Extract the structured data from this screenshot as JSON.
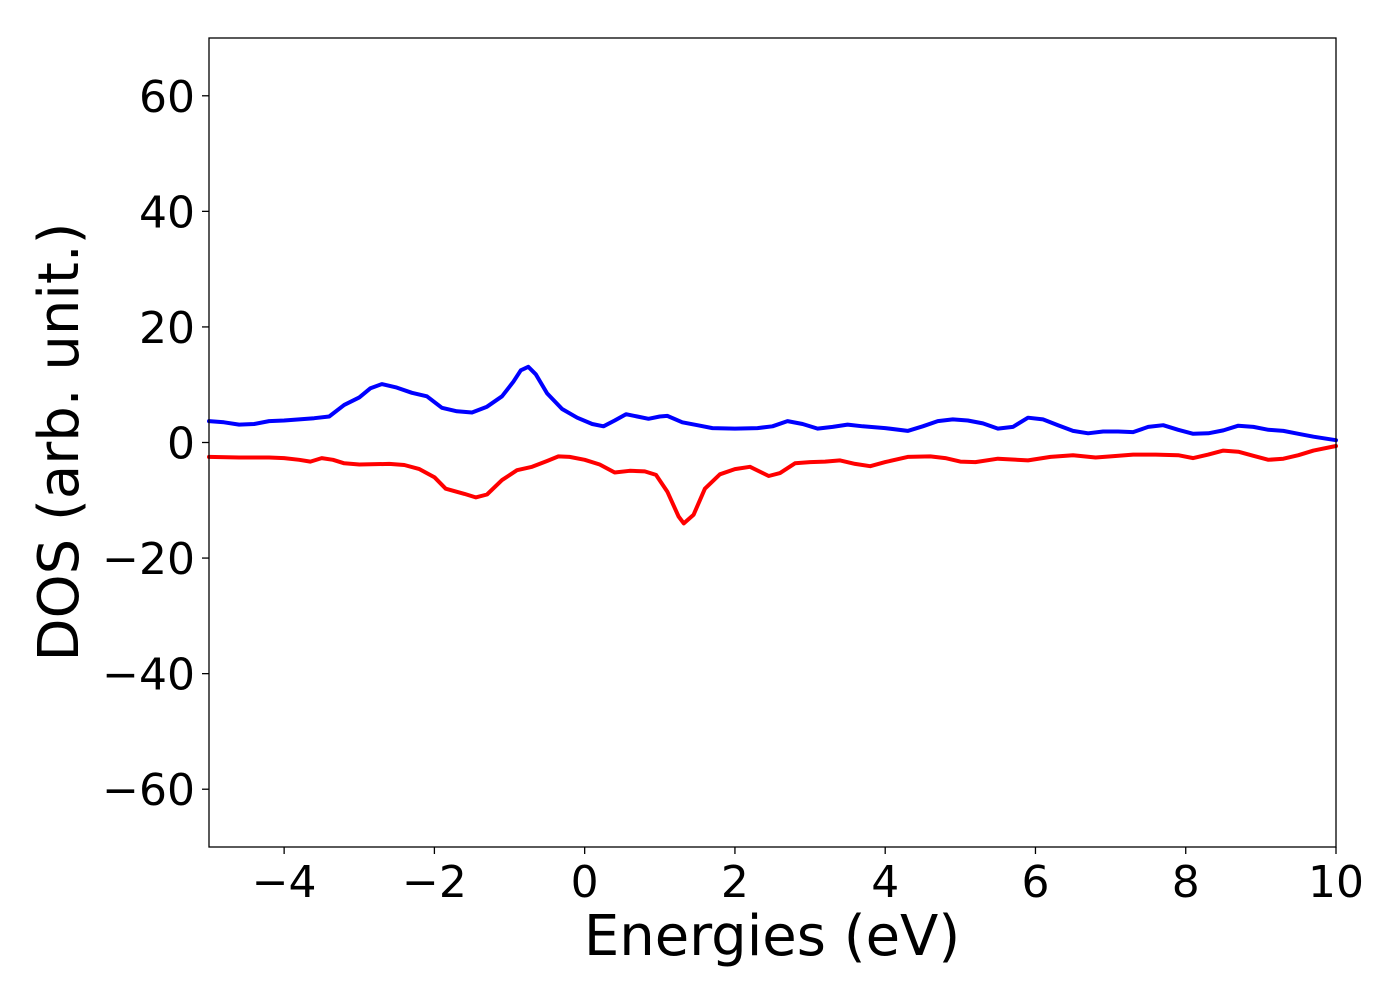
{
  "chart_data": {
    "type": "line",
    "title": "",
    "xlabel": "Energies (eV)",
    "ylabel": "DOS (arb. unit.)",
    "xlim": [
      -5,
      10
    ],
    "ylim": [
      -70,
      70
    ],
    "xticks": [
      -4,
      -2,
      0,
      2,
      4,
      6,
      8,
      10
    ],
    "xtick_labels": [
      "−4",
      "−2",
      "0",
      "2",
      "4",
      "6",
      "8",
      "10"
    ],
    "yticks": [
      60,
      40,
      20,
      0,
      -20,
      -40,
      -60
    ],
    "ytick_labels": [
      "60",
      "40",
      "20",
      "0",
      "−20",
      "−40",
      "−60"
    ],
    "grid": false,
    "series": [
      {
        "color": "#0000ff",
        "points": [
          [
            -5.0,
            3.7
          ],
          [
            -4.8,
            3.5
          ],
          [
            -4.6,
            3.1
          ],
          [
            -4.4,
            3.2
          ],
          [
            -4.2,
            3.7
          ],
          [
            -4.0,
            3.8
          ],
          [
            -3.8,
            4.0
          ],
          [
            -3.6,
            4.2
          ],
          [
            -3.4,
            4.5
          ],
          [
            -3.2,
            6.5
          ],
          [
            -3.0,
            7.8
          ],
          [
            -2.85,
            9.4
          ],
          [
            -2.7,
            10.1
          ],
          [
            -2.5,
            9.5
          ],
          [
            -2.3,
            8.6
          ],
          [
            -2.1,
            8.0
          ],
          [
            -1.9,
            6.0
          ],
          [
            -1.7,
            5.4
          ],
          [
            -1.5,
            5.2
          ],
          [
            -1.3,
            6.2
          ],
          [
            -1.1,
            8.0
          ],
          [
            -0.95,
            10.5
          ],
          [
            -0.85,
            12.5
          ],
          [
            -0.75,
            13.1
          ],
          [
            -0.65,
            11.8
          ],
          [
            -0.5,
            8.5
          ],
          [
            -0.3,
            5.8
          ],
          [
            -0.1,
            4.3
          ],
          [
            0.1,
            3.2
          ],
          [
            0.25,
            2.8
          ],
          [
            0.4,
            3.8
          ],
          [
            0.55,
            4.9
          ],
          [
            0.7,
            4.5
          ],
          [
            0.85,
            4.1
          ],
          [
            1.0,
            4.5
          ],
          [
            1.1,
            4.6
          ],
          [
            1.3,
            3.5
          ],
          [
            1.5,
            3.0
          ],
          [
            1.7,
            2.5
          ],
          [
            2.0,
            2.4
          ],
          [
            2.3,
            2.5
          ],
          [
            2.5,
            2.8
          ],
          [
            2.7,
            3.7
          ],
          [
            2.9,
            3.2
          ],
          [
            3.1,
            2.4
          ],
          [
            3.3,
            2.7
          ],
          [
            3.5,
            3.1
          ],
          [
            3.7,
            2.8
          ],
          [
            4.0,
            2.5
          ],
          [
            4.3,
            2.0
          ],
          [
            4.5,
            2.8
          ],
          [
            4.7,
            3.7
          ],
          [
            4.9,
            4.0
          ],
          [
            5.1,
            3.8
          ],
          [
            5.3,
            3.3
          ],
          [
            5.5,
            2.4
          ],
          [
            5.7,
            2.7
          ],
          [
            5.9,
            4.3
          ],
          [
            6.1,
            4.0
          ],
          [
            6.3,
            3.0
          ],
          [
            6.5,
            2.0
          ],
          [
            6.7,
            1.6
          ],
          [
            6.9,
            1.9
          ],
          [
            7.1,
            1.9
          ],
          [
            7.3,
            1.8
          ],
          [
            7.5,
            2.7
          ],
          [
            7.7,
            3.0
          ],
          [
            7.9,
            2.2
          ],
          [
            8.1,
            1.5
          ],
          [
            8.3,
            1.6
          ],
          [
            8.5,
            2.1
          ],
          [
            8.7,
            2.9
          ],
          [
            8.9,
            2.7
          ],
          [
            9.1,
            2.2
          ],
          [
            9.3,
            2.0
          ],
          [
            9.5,
            1.5
          ],
          [
            9.7,
            1.0
          ],
          [
            10.0,
            0.4
          ]
        ]
      },
      {
        "color": "#ff0000",
        "points": [
          [
            -5.0,
            -2.5
          ],
          [
            -4.6,
            -2.6
          ],
          [
            -4.2,
            -2.6
          ],
          [
            -4.0,
            -2.7
          ],
          [
            -3.8,
            -3.0
          ],
          [
            -3.65,
            -3.3
          ],
          [
            -3.5,
            -2.7
          ],
          [
            -3.35,
            -3.0
          ],
          [
            -3.2,
            -3.6
          ],
          [
            -3.0,
            -3.8
          ],
          [
            -2.6,
            -3.7
          ],
          [
            -2.4,
            -3.9
          ],
          [
            -2.2,
            -4.6
          ],
          [
            -2.0,
            -6.0
          ],
          [
            -1.85,
            -8.0
          ],
          [
            -1.6,
            -8.9
          ],
          [
            -1.45,
            -9.5
          ],
          [
            -1.3,
            -9.0
          ],
          [
            -1.1,
            -6.5
          ],
          [
            -0.9,
            -4.8
          ],
          [
            -0.7,
            -4.2
          ],
          [
            -0.5,
            -3.2
          ],
          [
            -0.35,
            -2.4
          ],
          [
            -0.2,
            -2.5
          ],
          [
            0.0,
            -3.0
          ],
          [
            0.2,
            -3.8
          ],
          [
            0.4,
            -5.2
          ],
          [
            0.6,
            -4.9
          ],
          [
            0.8,
            -5.0
          ],
          [
            0.95,
            -5.6
          ],
          [
            1.1,
            -8.5
          ],
          [
            1.25,
            -12.8
          ],
          [
            1.32,
            -14.0
          ],
          [
            1.45,
            -12.5
          ],
          [
            1.6,
            -8.0
          ],
          [
            1.8,
            -5.5
          ],
          [
            2.0,
            -4.6
          ],
          [
            2.2,
            -4.2
          ],
          [
            2.45,
            -5.8
          ],
          [
            2.6,
            -5.3
          ],
          [
            2.8,
            -3.6
          ],
          [
            3.0,
            -3.4
          ],
          [
            3.2,
            -3.3
          ],
          [
            3.4,
            -3.1
          ],
          [
            3.6,
            -3.7
          ],
          [
            3.8,
            -4.1
          ],
          [
            4.0,
            -3.4
          ],
          [
            4.3,
            -2.5
          ],
          [
            4.6,
            -2.4
          ],
          [
            4.8,
            -2.7
          ],
          [
            5.0,
            -3.3
          ],
          [
            5.2,
            -3.4
          ],
          [
            5.5,
            -2.8
          ],
          [
            5.9,
            -3.1
          ],
          [
            6.2,
            -2.5
          ],
          [
            6.5,
            -2.2
          ],
          [
            6.8,
            -2.6
          ],
          [
            7.0,
            -2.4
          ],
          [
            7.3,
            -2.1
          ],
          [
            7.6,
            -2.1
          ],
          [
            7.9,
            -2.2
          ],
          [
            8.1,
            -2.7
          ],
          [
            8.3,
            -2.1
          ],
          [
            8.5,
            -1.4
          ],
          [
            8.7,
            -1.6
          ],
          [
            8.9,
            -2.3
          ],
          [
            9.1,
            -3.0
          ],
          [
            9.3,
            -2.8
          ],
          [
            9.5,
            -2.2
          ],
          [
            9.7,
            -1.4
          ],
          [
            10.0,
            -0.6
          ]
        ]
      }
    ]
  }
}
